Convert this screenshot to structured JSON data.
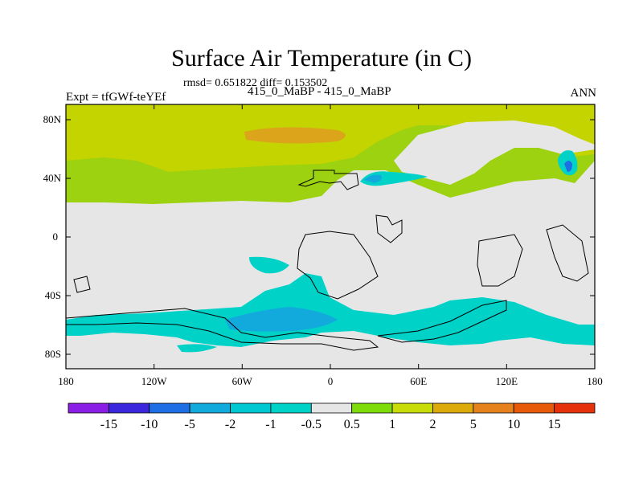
{
  "header": {
    "title": "Surface Air Temperature (in C)",
    "stats": "rmsd= 0.651822 diff= 0.153502",
    "experiment": "Expt = tfGWf-teYEf",
    "comparison": "415_0_MaBP - 415_0_MaBP",
    "season": "ANN"
  },
  "axes": {
    "lat_ticks": [
      "80N",
      "40N",
      "0",
      "40S",
      "80S"
    ],
    "lon_ticks": [
      "180",
      "120W",
      "60W",
      "0",
      "60E",
      "120E",
      "180"
    ]
  },
  "colorbar": {
    "labels": [
      "-15",
      "-10",
      "-5",
      "-2",
      "-1",
      "-0.5",
      "0.5",
      "1",
      "2",
      "5",
      "10",
      "15"
    ],
    "colors": [
      "#8a1ee6",
      "#3c28dc",
      "#1e6ee6",
      "#12aadc",
      "#00c8d2",
      "#00d2c8",
      "#e6e6e6",
      "#7ddc0a",
      "#c8dc0a",
      "#dcaa0a",
      "#e6821e",
      "#e65a0a",
      "#e6320a"
    ]
  },
  "map_colors": {
    "land_outline": "#000000",
    "neutral": "#e6e6e6",
    "warm_1": "#9cd20f",
    "warm_2": "#c4d400",
    "warm_3": "#dca41a",
    "cool_1": "#00d2c8",
    "cool_2": "#12aadc",
    "cool_3": "#1e6ee6"
  }
}
